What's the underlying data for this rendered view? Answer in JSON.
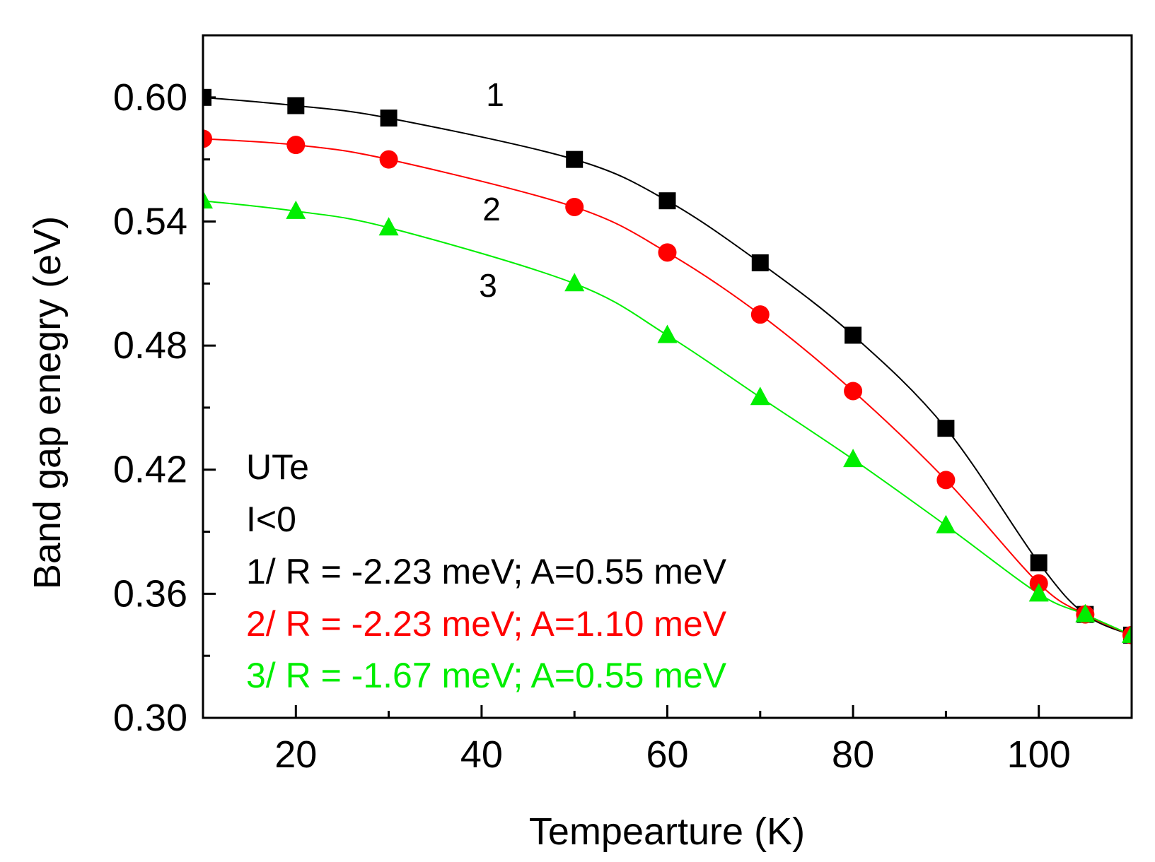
{
  "chart_data": {
    "type": "line",
    "xlabel": "Tempearture (K)",
    "ylabel": "Band gap enegry (eV)",
    "xlim": [
      10,
      110
    ],
    "ylim": [
      0.3,
      0.63
    ],
    "xticks": [
      20,
      40,
      60,
      80,
      100
    ],
    "xtick_labels": [
      "20",
      "40",
      "60",
      "80",
      "100"
    ],
    "yticks": [
      0.3,
      0.36,
      0.42,
      0.48,
      0.54,
      0.6
    ],
    "ytick_labels": [
      "0.30",
      "0.36",
      "0.42",
      "0.48",
      "0.54",
      "0.60"
    ],
    "series": [
      {
        "name": "1/ R = -2.23 meV; A=0.55 meV",
        "label": "1",
        "color": "#000000",
        "marker": "square",
        "x": [
          10,
          20,
          30,
          50,
          60,
          70,
          80,
          90,
          100,
          105,
          110
        ],
        "y": [
          0.6,
          0.596,
          0.59,
          0.57,
          0.55,
          0.52,
          0.485,
          0.44,
          0.375,
          0.35,
          0.34
        ]
      },
      {
        "name": "2/ R = -2.23 meV; A=1.10 meV",
        "label": "2",
        "color": "#ff0000",
        "marker": "circle",
        "x": [
          10,
          20,
          30,
          50,
          60,
          70,
          80,
          90,
          100,
          105,
          110
        ],
        "y": [
          0.58,
          0.577,
          0.57,
          0.547,
          0.525,
          0.495,
          0.458,
          0.415,
          0.365,
          0.35,
          0.34
        ]
      },
      {
        "name": "3/ R = -1.67 meV; A=0.55 meV",
        "label": "3",
        "color": "#00ee00",
        "marker": "triangle",
        "x": [
          10,
          20,
          30,
          50,
          60,
          70,
          80,
          90,
          100,
          105,
          110
        ],
        "y": [
          0.55,
          0.545,
          0.537,
          0.51,
          0.485,
          0.455,
          0.425,
          0.393,
          0.36,
          0.35,
          0.34
        ]
      }
    ],
    "annotations": {
      "material": "UTe",
      "condition": "I<0"
    }
  }
}
